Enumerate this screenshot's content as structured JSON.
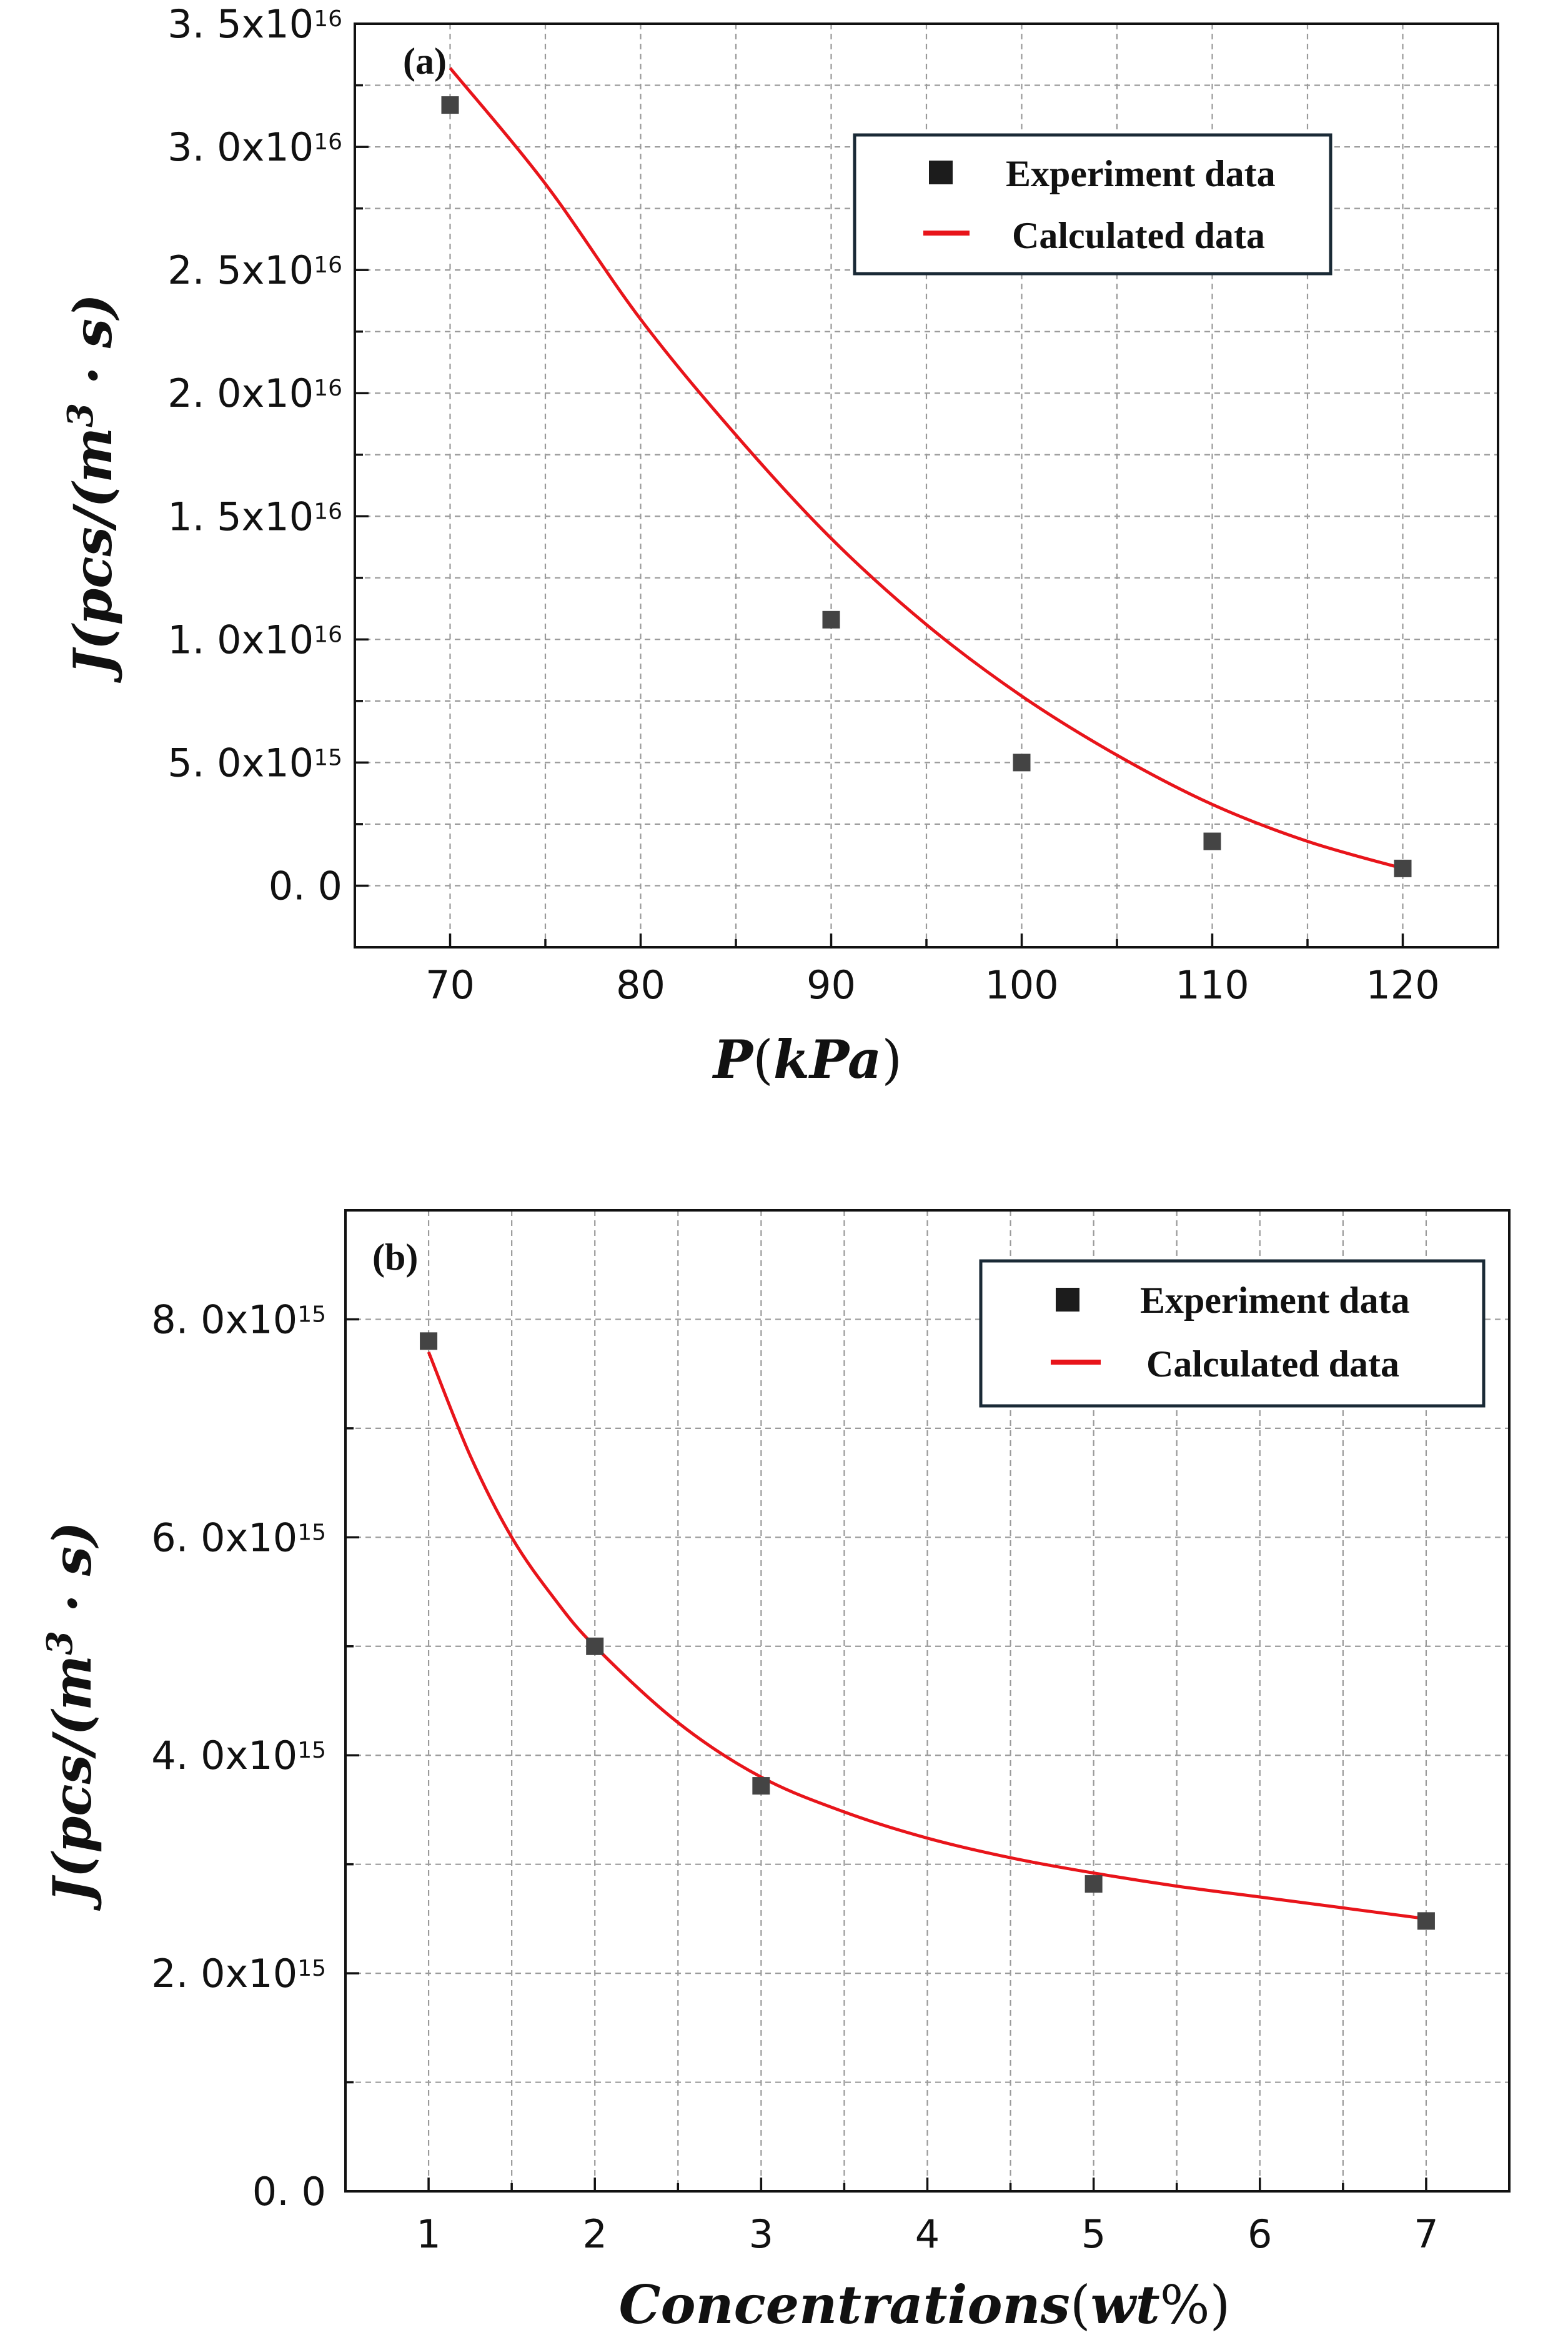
{
  "chart_data": [
    {
      "type": "scatter",
      "panel_label": "(a)",
      "xlabel": {
        "main": "P",
        "open": "(",
        "unit": "kPa",
        "close": ")"
      },
      "ylabel": {
        "pre": "J(pcs/(m",
        "sup": "3",
        "post": " · s)"
      },
      "xlim": [
        65,
        125
      ],
      "ylim": [
        -2500000000000000.0,
        3.5e+16
      ],
      "x_ticks": [
        70,
        80,
        90,
        100,
        110,
        120
      ],
      "x_tick_labels": [
        "70",
        "80",
        "90",
        "100",
        "110",
        "120"
      ],
      "y_ticks": [
        0,
        5000000000000000.0,
        1e+16,
        1.5e+16,
        2e+16,
        2.5e+16,
        3e+16,
        3.5e+16
      ],
      "y_tick_labels": [
        {
          "mant": "0. 0",
          "exp": ""
        },
        {
          "mant": "5. 0x10",
          "exp": "15"
        },
        {
          "mant": "1. 0x10",
          "exp": "16"
        },
        {
          "mant": "1. 5x10",
          "exp": "16"
        },
        {
          "mant": "2. 0x10",
          "exp": "16"
        },
        {
          "mant": "2. 5x10",
          "exp": "16"
        },
        {
          "mant": "3. 0x10",
          "exp": "16"
        },
        {
          "mant": "3. 5x10",
          "exp": "16"
        }
      ],
      "grid": true,
      "legend": {
        "position": "top-right",
        "marker_label": "Experiment data",
        "line_label": "Calculated data"
      },
      "series": [
        {
          "name": "Experiment data",
          "kind": "markers",
          "x": [
            70,
            90,
            100,
            110,
            120
          ],
          "y": [
            3.17e+16,
            1.08e+16,
            5000000000000000.0,
            1800000000000000.0,
            700000000000000.0
          ]
        },
        {
          "name": "Calculated data",
          "kind": "line",
          "x": [
            70,
            75,
            80,
            85,
            90,
            95,
            100,
            105,
            110,
            115,
            120
          ],
          "y": [
            3.32e+16,
            2.85e+16,
            2.3e+16,
            1.83e+16,
            1.41e+16,
            1.06e+16,
            7700000000000000.0,
            5300000000000000.0,
            3300000000000000.0,
            1800000000000000.0,
            700000000000000.0
          ]
        }
      ]
    },
    {
      "type": "scatter",
      "panel_label": "(b)",
      "xlabel": {
        "main": "Concentrations",
        "open": "(",
        "unit": "wt",
        "close": "%)"
      },
      "ylabel": {
        "pre": "J(pcs/(m",
        "sup": "3",
        "post": " · s)"
      },
      "xlim": [
        0.5,
        7.5
      ],
      "ylim": [
        0,
        9000000000000000.0
      ],
      "x_ticks": [
        1,
        2,
        3,
        4,
        5,
        6,
        7
      ],
      "x_tick_labels": [
        "1",
        "2",
        "3",
        "4",
        "5",
        "6",
        "7"
      ],
      "y_ticks": [
        0,
        2000000000000000.0,
        4000000000000000.0,
        6000000000000000.0,
        8000000000000000.0
      ],
      "y_tick_labels": [
        {
          "mant": "0. 0",
          "exp": ""
        },
        {
          "mant": "2. 0x10",
          "exp": "15"
        },
        {
          "mant": "4. 0x10",
          "exp": "15"
        },
        {
          "mant": "6. 0x10",
          "exp": "15"
        },
        {
          "mant": "8. 0x10",
          "exp": "15"
        }
      ],
      "grid": true,
      "legend": {
        "position": "top-right",
        "marker_label": "Experiment data",
        "line_label": "Calculated data"
      },
      "series": [
        {
          "name": "Experiment data",
          "kind": "markers",
          "x": [
            1,
            2,
            3,
            5,
            7
          ],
          "y": [
            7800000000000000.0,
            5000000000000000.0,
            3720000000000000.0,
            2820000000000000.0,
            2480000000000000.0
          ]
        },
        {
          "name": "Calculated data",
          "kind": "line",
          "x": [
            1,
            1.25,
            1.5,
            1.75,
            2,
            2.5,
            3,
            3.5,
            4,
            4.5,
            5,
            5.5,
            6,
            6.5,
            7
          ],
          "y": [
            7700000000000000.0,
            6750000000000000.0,
            6000000000000000.0,
            5450000000000000.0,
            5000000000000000.0,
            4300000000000000.0,
            3800000000000000.0,
            3480000000000000.0,
            3240000000000000.0,
            3060000000000000.0,
            2920000000000000.0,
            2800000000000000.0,
            2700000000000000.0,
            2600000000000000.0,
            2500000000000000.0
          ]
        }
      ]
    }
  ],
  "colors": {
    "marker": "#444444",
    "fit_line": "#e8141a",
    "frame": "#111111",
    "legend_border": "#1a2a36",
    "grid": "#9a9a9a"
  }
}
